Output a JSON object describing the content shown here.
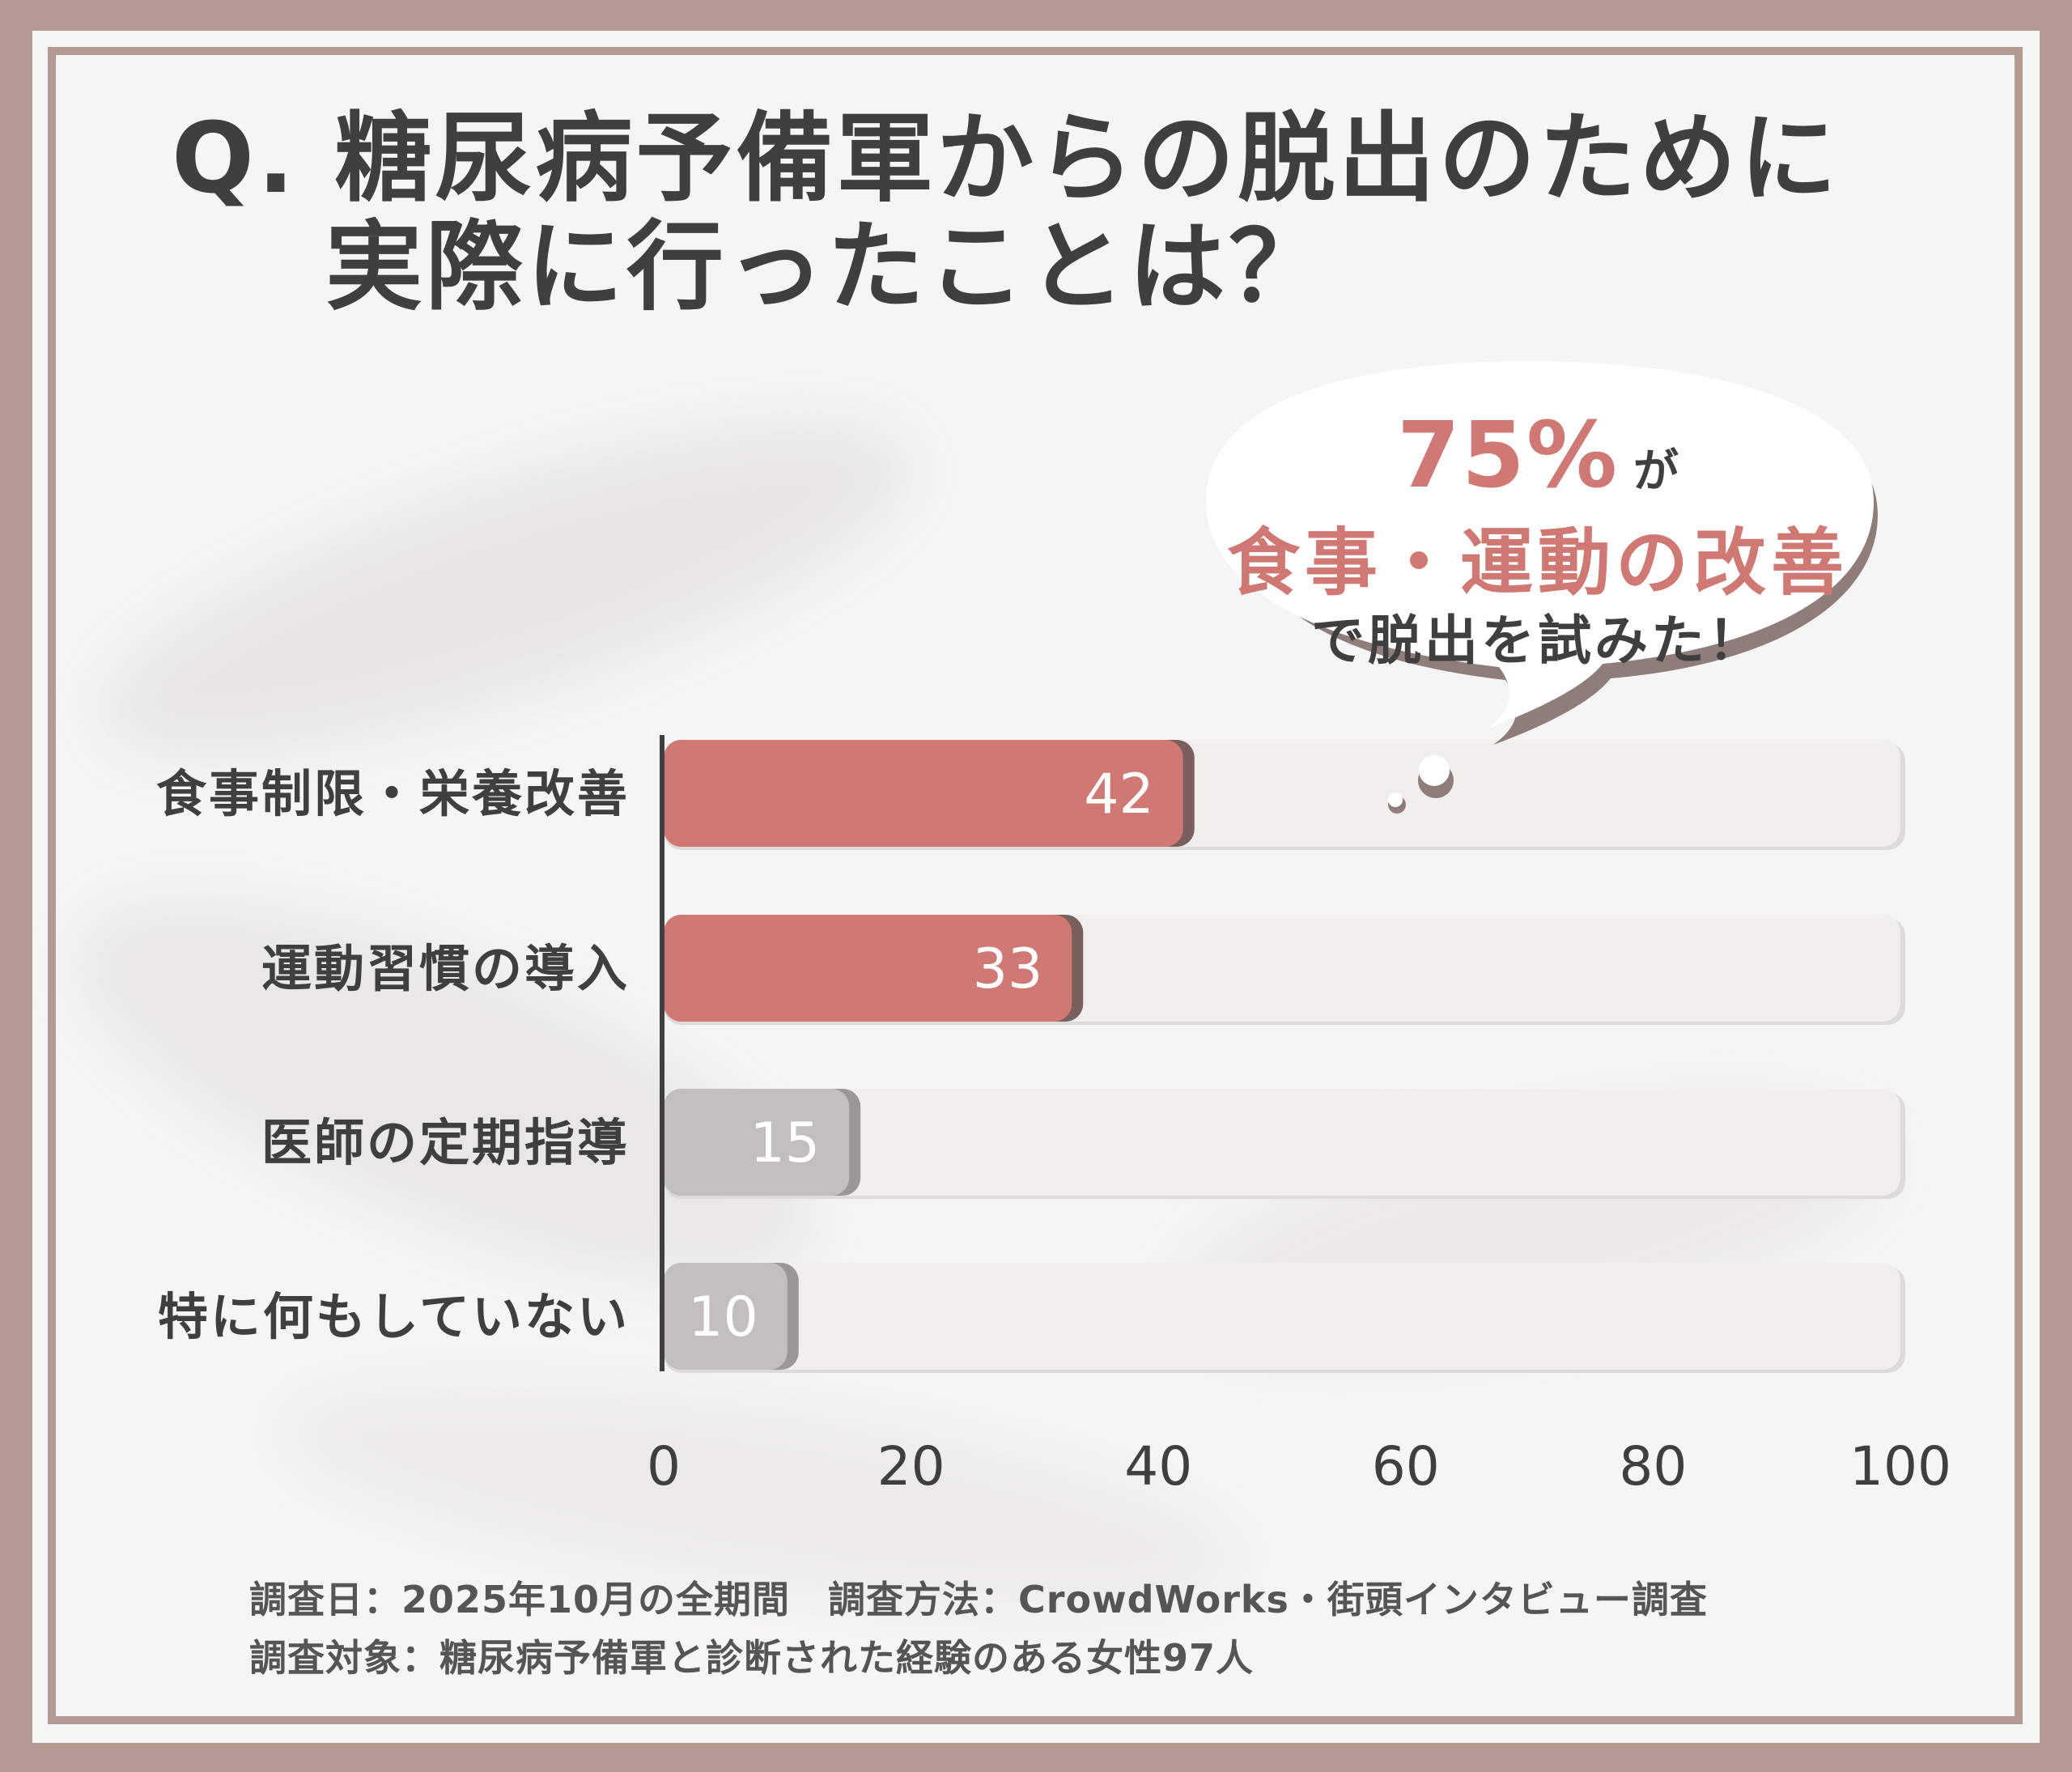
{
  "title": {
    "line1": "Q. 糖尿病予備軍からの脱出のために",
    "line2": "実際に行ったことは？"
  },
  "callout": {
    "percent": "75%",
    "particle": "が",
    "highlight": "食事・運動の改善",
    "tail": "で脱出を試みた！"
  },
  "footer": {
    "line1": "調査日：2025年10月の全期間　調査方法：CrowdWorks・街頭インタビュー調査",
    "line2": "調査対象：糖尿病予備軍と診断された経験のある女性97人"
  },
  "colors": {
    "highlight_bar": "#d07874",
    "neutral_bar": "#c2bfbe",
    "track": "#f1eeee",
    "frame": "#b39a92",
    "text": "#3f3f3f",
    "accent_text": "#d07874"
  },
  "chart_data": {
    "type": "bar",
    "orientation": "horizontal",
    "categories": [
      "食事制限・栄養改善",
      "運動習慣の導入",
      "医師の定期指導",
      "特に何もしていない"
    ],
    "values": [
      42,
      33,
      15,
      10
    ],
    "highlighted": [
      true,
      true,
      false,
      false
    ],
    "xlim": [
      0,
      100
    ],
    "xticks": [
      "0",
      "20",
      "40",
      "60",
      "80",
      "100"
    ],
    "data_labels": [
      "42",
      "33",
      "15",
      "10"
    ],
    "grid": false,
    "legend": "none"
  }
}
